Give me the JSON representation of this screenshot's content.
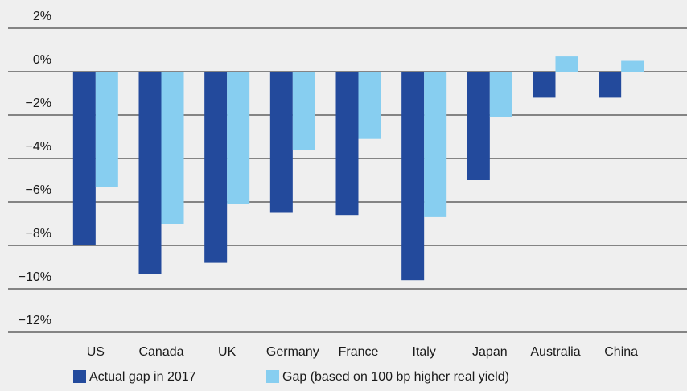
{
  "chart_data": {
    "type": "bar",
    "categories": [
      "US",
      "Canada",
      "UK",
      "Germany",
      "France",
      "Italy",
      "Japan",
      "Australia",
      "China"
    ],
    "series": [
      {
        "name": "Actual gap in 2017",
        "color": "#234a9c",
        "values": [
          -8.0,
          -9.3,
          -8.8,
          -6.5,
          -6.6,
          -9.6,
          -5.0,
          -1.2,
          -1.2
        ]
      },
      {
        "name": "Gap (based on 100 bp higher real yield)",
        "color": "#87cef0",
        "values": [
          -5.3,
          -7.0,
          -6.1,
          -3.6,
          -3.1,
          -6.7,
          -2.1,
          0.7,
          0.5
        ]
      }
    ],
    "ylim": [
      -12,
      2
    ],
    "yticks": [
      {
        "value": 2,
        "label": "2%"
      },
      {
        "value": 0,
        "label": "0%"
      },
      {
        "value": -2,
        "label": "−2%"
      },
      {
        "value": -4,
        "label": "−4%"
      },
      {
        "value": -6,
        "label": "−6%"
      },
      {
        "value": -8,
        "label": "−8%"
      },
      {
        "value": -10,
        "label": "−10%"
      },
      {
        "value": -12,
        "label": "−12%"
      }
    ],
    "grid": true
  }
}
